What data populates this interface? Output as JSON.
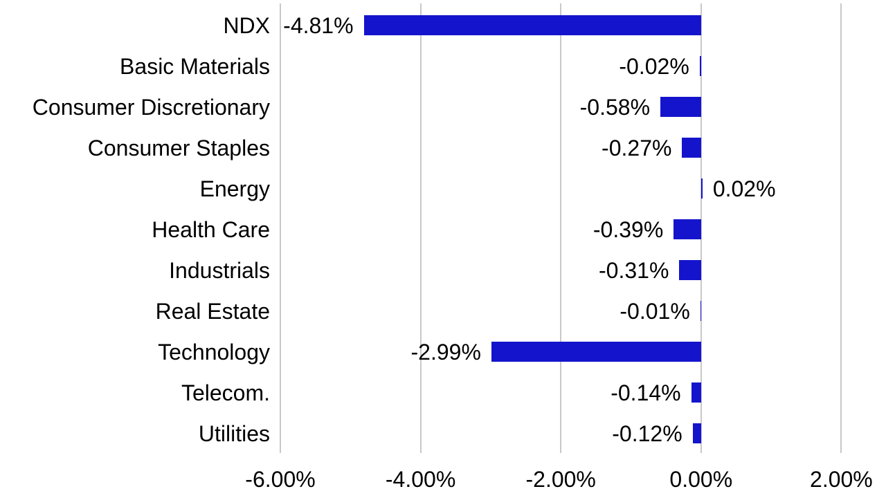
{
  "chart_data": {
    "type": "bar",
    "orientation": "horizontal",
    "title": "",
    "xlabel": "",
    "ylabel": "",
    "categories": [
      "NDX",
      "Basic Materials",
      "Consumer Discretionary",
      "Consumer Staples",
      "Energy",
      "Health Care",
      "Industrials",
      "Real Estate",
      "Technology",
      "Telecom.",
      "Utilities"
    ],
    "values": [
      -4.81,
      -0.02,
      -0.58,
      -0.27,
      0.02,
      -0.39,
      -0.31,
      -0.01,
      -2.99,
      -0.14,
      -0.12
    ],
    "value_labels": [
      "-4.81%",
      "-0.02%",
      "-0.58%",
      "-0.27%",
      "0.02%",
      "-0.39%",
      "-0.31%",
      "-0.01%",
      "-2.99%",
      "-0.14%",
      "-0.12%"
    ],
    "xlim": [
      -6,
      2
    ],
    "xticks": [
      -6,
      -4,
      -2,
      0,
      2
    ],
    "xtick_labels": [
      "-6.00%",
      "-4.00%",
      "-2.00%",
      "0.00%",
      "2.00%"
    ],
    "grid": "vertical",
    "legend": "none",
    "bar_color": "#1414cc",
    "gridline_color": "#c8c8c8",
    "text_color": "#000000",
    "background_color": "#ffffff"
  }
}
